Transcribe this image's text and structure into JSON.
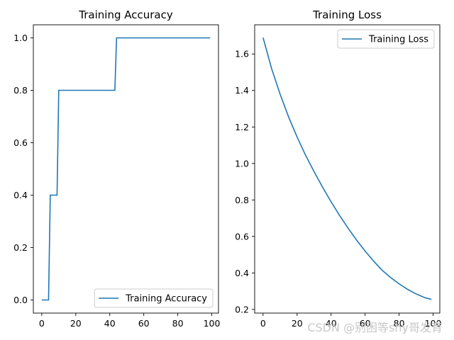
{
  "chart_data": [
    {
      "type": "line",
      "title": "Training Accuracy",
      "xlabel": "",
      "ylabel": "",
      "xlim": [
        -4.95,
        103.95
      ],
      "ylim": [
        -0.05,
        1.05
      ],
      "xticks": [
        0,
        20,
        40,
        60,
        80,
        100
      ],
      "yticks": [
        0.0,
        0.2,
        0.4,
        0.6,
        0.8,
        1.0
      ],
      "xtick_labels": [
        "0",
        "20",
        "40",
        "60",
        "80",
        "100"
      ],
      "ytick_labels": [
        "0.0",
        "0.2",
        "0.4",
        "0.6",
        "0.8",
        "1.0"
      ],
      "legend_position": "lower-right",
      "grid": false,
      "series": [
        {
          "name": "Training Accuracy",
          "color": "#1f77b4",
          "x": [
            0,
            1,
            2,
            3,
            4,
            5,
            6,
            7,
            8,
            9,
            10,
            11,
            12,
            20,
            30,
            40,
            43,
            44,
            45,
            60,
            80,
            99
          ],
          "y": [
            0.0,
            0.0,
            0.0,
            0.0,
            0.0,
            0.4,
            0.4,
            0.4,
            0.4,
            0.4,
            0.8,
            0.8,
            0.8,
            0.8,
            0.8,
            0.8,
            0.8,
            1.0,
            1.0,
            1.0,
            1.0,
            1.0
          ]
        }
      ]
    },
    {
      "type": "line",
      "title": "Training Loss",
      "xlabel": "",
      "ylabel": "",
      "xlim": [
        -4.95,
        103.95
      ],
      "ylim": [
        0.18,
        1.76
      ],
      "xticks": [
        0,
        20,
        40,
        60,
        80,
        100
      ],
      "yticks": [
        0.2,
        0.4,
        0.6,
        0.8,
        1.0,
        1.2,
        1.4,
        1.6
      ],
      "xtick_labels": [
        "0",
        "20",
        "40",
        "60",
        "80",
        "100"
      ],
      "ytick_labels": [
        "0.2",
        "0.4",
        "0.6",
        "0.8",
        "1.0",
        "1.2",
        "1.4",
        "1.6"
      ],
      "legend_position": "upper-right",
      "grid": false,
      "series": [
        {
          "name": "Training Loss",
          "color": "#1f77b4",
          "x": [
            0,
            5,
            10,
            15,
            20,
            25,
            30,
            35,
            40,
            45,
            50,
            55,
            60,
            65,
            70,
            75,
            80,
            85,
            90,
            95,
            99
          ],
          "y": [
            1.69,
            1.52,
            1.38,
            1.255,
            1.145,
            1.045,
            0.955,
            0.87,
            0.79,
            0.715,
            0.645,
            0.58,
            0.52,
            0.465,
            0.415,
            0.375,
            0.34,
            0.31,
            0.285,
            0.265,
            0.255
          ]
        }
      ]
    }
  ],
  "watermark": "CSDN @别困等shy哥发育"
}
